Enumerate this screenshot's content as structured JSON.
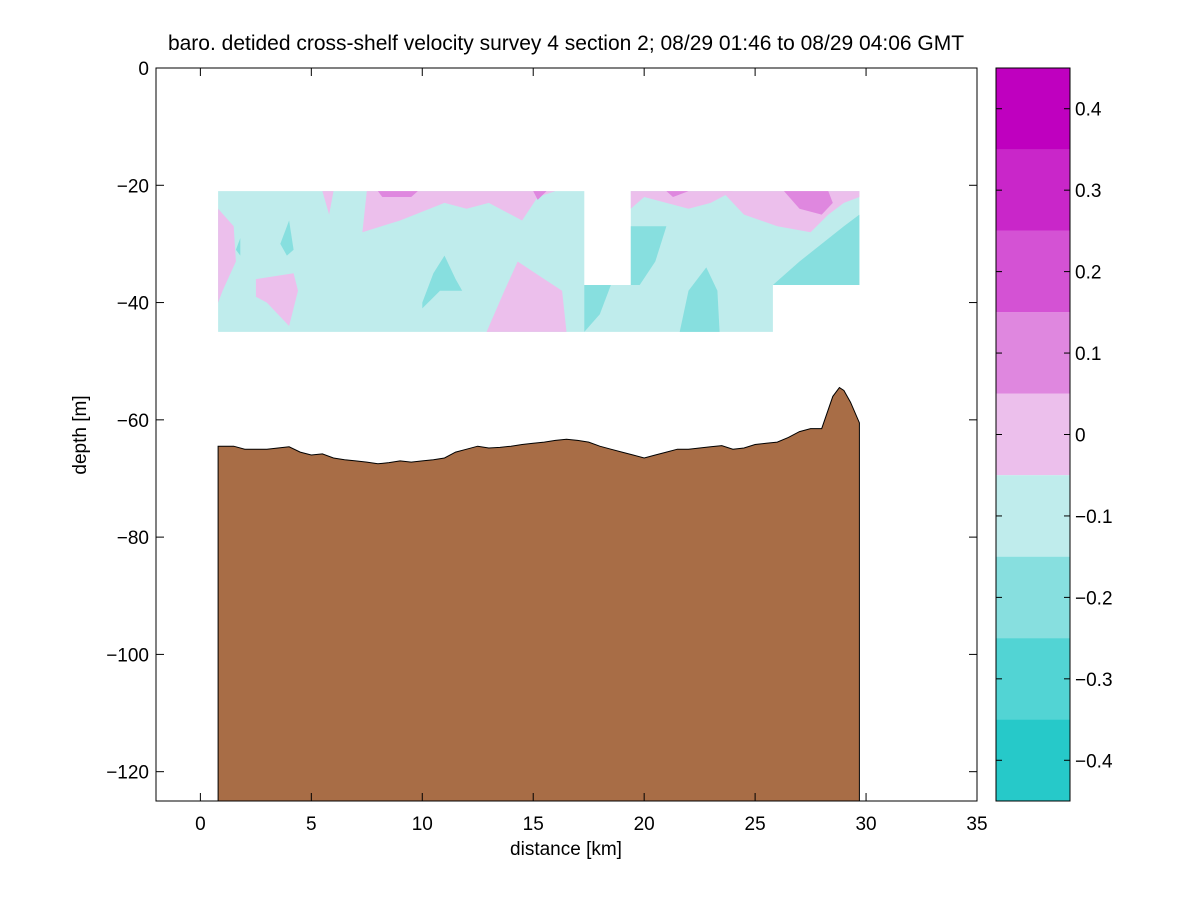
{
  "chart_data": {
    "type": "contour",
    "title": "baro. detided cross-shelf velocity survey 4 section 2; 08/29 01:46 to 08/29 04:06 GMT",
    "xlabel": "distance [km]",
    "ylabel": "depth [m]",
    "xlim": [
      -2,
      35
    ],
    "ylim": [
      -125,
      0
    ],
    "xticks": [
      0,
      5,
      10,
      15,
      20,
      25,
      30,
      35
    ],
    "yticks": [
      0,
      -20,
      -40,
      -60,
      -80,
      -100,
      -120
    ],
    "colorbar": {
      "range": [
        -0.45,
        0.45
      ],
      "ticks": [
        0.4,
        0.3,
        0.2,
        0.1,
        0,
        -0.1,
        -0.2,
        -0.3,
        -0.4
      ],
      "tick_labels": [
        "0.4",
        "0.3",
        "0.2",
        "0.1",
        "0",
        "−0.1",
        "−0.2",
        "−0.3",
        "−0.4"
      ],
      "levels": [
        {
          "from": 0.35,
          "to": 0.45,
          "color": "#bf00bf"
        },
        {
          "from": 0.25,
          "to": 0.35,
          "color": "#c926c9"
        },
        {
          "from": 0.15,
          "to": 0.25,
          "color": "#d452d4"
        },
        {
          "from": 0.05,
          "to": 0.15,
          "color": "#df87df"
        },
        {
          "from": -0.05,
          "to": 0.05,
          "color": "#ecbfec"
        },
        {
          "from": -0.15,
          "to": -0.05,
          "color": "#bfecec"
        },
        {
          "from": -0.25,
          "to": -0.15,
          "color": "#87dfdf"
        },
        {
          "from": -0.35,
          "to": -0.25,
          "color": "#52d4d4"
        },
        {
          "from": -0.45,
          "to": -0.35,
          "color": "#26c9c9"
        },
        {
          "from": -0.55,
          "to": -0.45,
          "color": "#00bfbf"
        }
      ]
    },
    "field_base_level": -0.1,
    "data_regions": [
      {
        "level": -0.1,
        "polygon": [
          [
            0.8,
            -21
          ],
          [
            17.3,
            -21
          ],
          [
            17.3,
            -37
          ],
          [
            19.4,
            -37
          ],
          [
            19.4,
            -21
          ],
          [
            29.7,
            -21
          ],
          [
            29.7,
            -37
          ],
          [
            25.8,
            -37
          ],
          [
            25.8,
            -45
          ],
          [
            0.8,
            -45
          ]
        ]
      },
      {
        "level": 0.0,
        "polygon": [
          [
            0.8,
            -24
          ],
          [
            1.5,
            -27
          ],
          [
            1.6,
            -33
          ],
          [
            1.0,
            -38
          ],
          [
            0.8,
            -40
          ]
        ]
      },
      {
        "level": 0.0,
        "polygon": [
          [
            2.5,
            -36
          ],
          [
            4.2,
            -35
          ],
          [
            4.4,
            -38
          ],
          [
            4.0,
            -44
          ],
          [
            3.0,
            -40
          ],
          [
            2.5,
            -39
          ]
        ]
      },
      {
        "level": 0.0,
        "polygon": [
          [
            5.5,
            -21
          ],
          [
            5.8,
            -25
          ],
          [
            6.0,
            -21
          ]
        ]
      },
      {
        "level": 0.0,
        "polygon": [
          [
            7.5,
            -21
          ],
          [
            7.3,
            -28
          ],
          [
            9.0,
            -26
          ],
          [
            11.0,
            -23
          ],
          [
            12.0,
            -24
          ],
          [
            13.0,
            -23
          ],
          [
            14.5,
            -26
          ],
          [
            15.2,
            -22
          ],
          [
            16.0,
            -21
          ]
        ]
      },
      {
        "level": 0.1,
        "polygon": [
          [
            8.0,
            -21
          ],
          [
            8.2,
            -22
          ],
          [
            9.5,
            -22
          ],
          [
            9.8,
            -21
          ]
        ]
      },
      {
        "level": 0.1,
        "polygon": [
          [
            15.0,
            -21
          ],
          [
            15.2,
            -22.5
          ],
          [
            15.6,
            -21
          ]
        ]
      },
      {
        "level": 0.0,
        "polygon": [
          [
            12.9,
            -45
          ],
          [
            13.7,
            -38
          ],
          [
            14.3,
            -33
          ],
          [
            15.5,
            -36
          ],
          [
            16.3,
            -38
          ],
          [
            16.5,
            -45
          ]
        ]
      },
      {
        "level": 0.0,
        "polygon": [
          [
            19.4,
            -21
          ],
          [
            19.4,
            -24
          ],
          [
            20.0,
            -22
          ],
          [
            21.0,
            -23
          ],
          [
            22.0,
            -24
          ],
          [
            23.0,
            -23
          ],
          [
            24.0,
            -21
          ]
        ]
      },
      {
        "level": 0.0,
        "polygon": [
          [
            23.5,
            -21
          ],
          [
            24.5,
            -25
          ],
          [
            26.0,
            -27
          ],
          [
            27.5,
            -28
          ],
          [
            28.3,
            -25
          ],
          [
            29.0,
            -23
          ],
          [
            29.7,
            -22
          ],
          [
            29.7,
            -21
          ]
        ]
      },
      {
        "level": 0.1,
        "polygon": [
          [
            26.3,
            -21
          ],
          [
            27.0,
            -24
          ],
          [
            28.0,
            -25
          ],
          [
            28.5,
            -23
          ],
          [
            28.3,
            -21
          ]
        ]
      },
      {
        "level": 0.1,
        "polygon": [
          [
            21.0,
            -21
          ],
          [
            21.3,
            -22
          ],
          [
            22.0,
            -21
          ]
        ]
      },
      {
        "level": -0.2,
        "polygon": [
          [
            17.3,
            -37
          ],
          [
            18.5,
            -37
          ],
          [
            18.0,
            -42
          ],
          [
            17.3,
            -45
          ]
        ]
      },
      {
        "level": -0.2,
        "polygon": [
          [
            19.4,
            -27
          ],
          [
            21.0,
            -27
          ],
          [
            20.5,
            -33
          ],
          [
            19.8,
            -37
          ],
          [
            19.4,
            -37
          ]
        ]
      },
      {
        "level": -0.2,
        "polygon": [
          [
            21.6,
            -45
          ],
          [
            22.0,
            -38
          ],
          [
            22.8,
            -34
          ],
          [
            23.3,
            -38
          ],
          [
            23.4,
            -45
          ]
        ]
      },
      {
        "level": -0.2,
        "polygon": [
          [
            25.8,
            -37
          ],
          [
            27.0,
            -33
          ],
          [
            28.0,
            -30
          ],
          [
            29.0,
            -27
          ],
          [
            29.7,
            -25
          ],
          [
            29.7,
            -37
          ]
        ]
      },
      {
        "level": -0.2,
        "polygon": [
          [
            10.0,
            -40
          ],
          [
            10.5,
            -35
          ],
          [
            11.0,
            -32
          ],
          [
            11.5,
            -36
          ],
          [
            11.8,
            -38
          ],
          [
            10.8,
            -38
          ],
          [
            10.0,
            -41
          ]
        ]
      },
      {
        "level": -0.2,
        "polygon": [
          [
            3.6,
            -30
          ],
          [
            4.0,
            -26
          ],
          [
            4.2,
            -31
          ],
          [
            3.9,
            -32
          ]
        ]
      },
      {
        "level": -0.2,
        "polygon": [
          [
            1.6,
            -31
          ],
          [
            1.8,
            -29
          ],
          [
            1.8,
            -32
          ]
        ]
      }
    ],
    "bathymetry": {
      "color": "#a86d46",
      "distance_km": [
        0.8,
        1.5,
        2.0,
        2.5,
        3.0,
        3.5,
        4.0,
        4.5,
        5.0,
        5.5,
        6.0,
        6.5,
        7.0,
        7.5,
        8.0,
        8.5,
        9.0,
        9.5,
        10.0,
        10.5,
        11.0,
        11.5,
        12.0,
        12.5,
        13.0,
        13.5,
        14.0,
        14.5,
        15.0,
        15.5,
        16.0,
        16.5,
        17.0,
        17.5,
        18.0,
        18.5,
        19.0,
        19.5,
        20.0,
        20.5,
        21.0,
        21.5,
        22.0,
        22.5,
        23.0,
        23.5,
        24.0,
        24.5,
        25.0,
        25.5,
        26.0,
        26.5,
        27.0,
        27.5,
        28.0,
        28.5,
        28.8,
        29.0,
        29.3,
        29.7
      ],
      "depth_m": [
        -64.5,
        -64.5,
        -65.0,
        -65.0,
        -65.0,
        -64.8,
        -64.6,
        -65.5,
        -66.0,
        -65.8,
        -66.5,
        -66.8,
        -67.0,
        -67.2,
        -67.5,
        -67.3,
        -67.0,
        -67.2,
        -67.0,
        -66.8,
        -66.5,
        -65.5,
        -65.0,
        -64.5,
        -64.8,
        -64.7,
        -64.5,
        -64.2,
        -64.0,
        -63.8,
        -63.5,
        -63.3,
        -63.5,
        -63.8,
        -64.5,
        -65.0,
        -65.5,
        -66.0,
        -66.5,
        -66.0,
        -65.5,
        -65.0,
        -65.0,
        -64.8,
        -64.6,
        -64.4,
        -65.0,
        -64.8,
        -64.2,
        -64.0,
        -63.8,
        -63.0,
        -62.0,
        -61.5,
        -61.5,
        -56.0,
        -54.5,
        -55.0,
        -57.0,
        -60.5
      ]
    }
  }
}
